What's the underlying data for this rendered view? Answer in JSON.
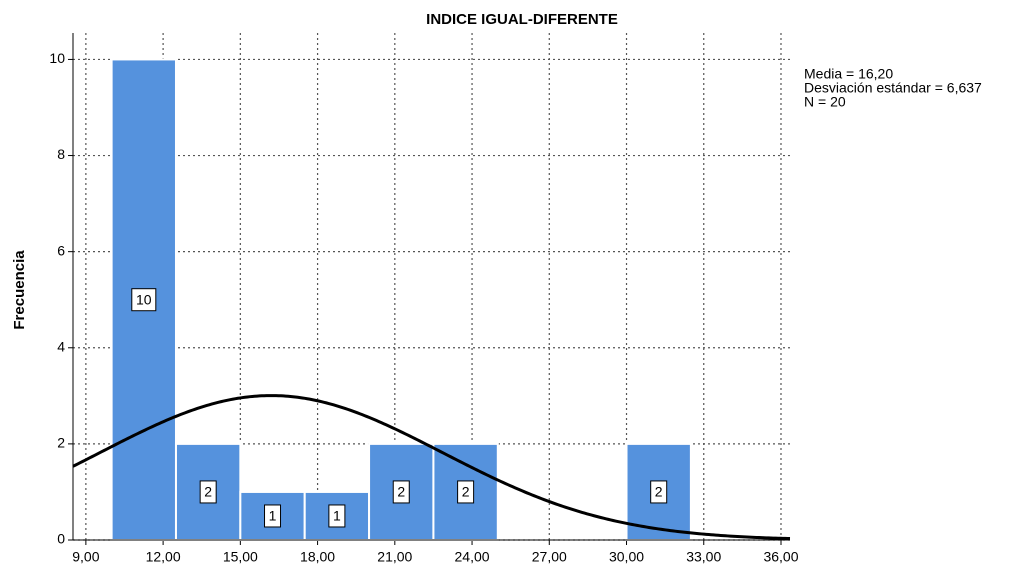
{
  "chart_data": {
    "type": "histogram",
    "title": "INDICE IGUAL-DIFERENTE",
    "y_label": "Frecuencia",
    "bins": [
      10,
      12.5,
      15,
      17.5,
      20,
      22.5,
      25,
      27.5,
      30,
      32.5
    ],
    "values": [
      10,
      2,
      1,
      1,
      2,
      2,
      0,
      0,
      2
    ],
    "color": "#5592dd",
    "xlim": [
      8.5,
      36.35
    ],
    "xticks": [
      {
        "value": 9,
        "label": "9,00"
      },
      {
        "value": 12,
        "label": "12,00"
      },
      {
        "value": 15,
        "label": "15,00"
      },
      {
        "value": 18,
        "label": "18,00"
      },
      {
        "value": 21,
        "label": "21,00"
      },
      {
        "value": 24,
        "label": "24,00"
      },
      {
        "value": 27,
        "label": "27,00"
      },
      {
        "value": 30,
        "label": "30,00"
      },
      {
        "value": 33,
        "label": "33,00"
      },
      {
        "value": 36,
        "label": "36,00"
      }
    ],
    "ylim": [
      0,
      10.55
    ],
    "yticks": [
      0,
      2,
      4,
      6,
      8,
      10
    ],
    "grid": true,
    "normal_curve": {
      "mean": 16.2,
      "sd": 6.637,
      "n": 20
    },
    "annotations": [
      "Media = 16,20",
      "Desviación estándar = 6,637",
      "N = 20"
    ]
  }
}
